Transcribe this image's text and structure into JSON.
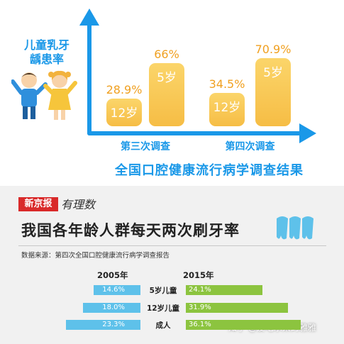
{
  "top_panel": {
    "kids_title_line1": "儿童乳牙",
    "kids_title_line2": "龋患率",
    "big_title": "全国口腔健康流行病学调查结果"
  },
  "bottom_panel": {
    "brand": "新京报",
    "brand_sub": "有理数",
    "title": "我国各年龄人群每天两次刷牙率",
    "source": "数据来源：第四次全国口腔健康流行病学调查报告",
    "col_left": "2005年",
    "col_right": "2015年",
    "watermark": "知乎 @爱吃水果的雅雅"
  },
  "colors": {
    "blue_title": "#1a98e8",
    "bar_yellow": "#f6bd45",
    "value_orange": "#f0a020",
    "bar_2005": "#5ec1ea",
    "bar_2015": "#8cc43f"
  },
  "chart_data": [
    {
      "type": "bar",
      "title": "儿童乳牙龋患率",
      "categories": [
        "第三次调查",
        "第四次调查"
      ],
      "series_labels": [
        "12岁",
        "5岁"
      ],
      "values": [
        {
          "group": "第三次调查",
          "age": "12岁",
          "value": 28.9,
          "label": "28.9%"
        },
        {
          "group": "第三次调查",
          "age": "5岁",
          "value": 66,
          "label": "66%"
        },
        {
          "group": "第四次调查",
          "age": "12岁",
          "value": 34.5,
          "label": "34.5%"
        },
        {
          "group": "第四次调查",
          "age": "5岁",
          "value": 70.9,
          "label": "70.9%"
        }
      ],
      "ylim": [
        0,
        80
      ]
    },
    {
      "type": "bar",
      "orientation": "horizontal",
      "title": "我国各年龄人群每天两次刷牙率",
      "categories": [
        "5岁儿童",
        "12岁儿童",
        "成人"
      ],
      "series": [
        {
          "name": "2005年",
          "values": [
            14.6,
            18.0,
            23.3
          ],
          "labels": [
            "14.6%",
            "18.0%",
            "23.3%"
          ]
        },
        {
          "name": "2015年",
          "values": [
            24.1,
            31.9,
            36.1
          ],
          "labels": [
            "24.1%",
            "31.9%",
            "36.1%"
          ]
        }
      ]
    }
  ]
}
